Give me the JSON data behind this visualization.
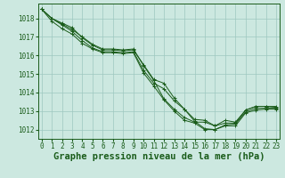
{
  "title": "Graphe pression niveau de la mer (hPa)",
  "xlabel_hours": [
    0,
    1,
    2,
    3,
    4,
    5,
    6,
    7,
    8,
    9,
    10,
    11,
    12,
    13,
    14,
    15,
    16,
    17,
    18,
    19,
    20,
    21,
    22,
    23
  ],
  "ylim": [
    1011.5,
    1018.8
  ],
  "xlim": [
    -0.3,
    23.3
  ],
  "yticks": [
    1012,
    1013,
    1014,
    1015,
    1016,
    1017,
    1018
  ],
  "background_color": "#cce8e0",
  "grid_color": "#9dc8c0",
  "line_color": "#1a5c1a",
  "lines": [
    [
      1018.5,
      1018.0,
      1017.75,
      1017.5,
      1016.95,
      1016.55,
      1016.3,
      1016.3,
      1016.25,
      1016.3,
      1015.5,
      1014.7,
      1014.5,
      1013.7,
      1013.1,
      1012.55,
      1012.5,
      1012.2,
      1012.5,
      1012.4,
      1013.05,
      1013.25,
      1013.25,
      1013.2
    ],
    [
      1018.5,
      1018.0,
      1017.65,
      1017.3,
      1016.8,
      1016.4,
      1016.2,
      1016.2,
      1016.15,
      1016.2,
      1015.2,
      1014.5,
      1014.2,
      1013.55,
      1013.1,
      1012.45,
      1012.05,
      1012.0,
      1012.25,
      1012.3,
      1012.95,
      1013.15,
      1013.15,
      1013.15
    ],
    [
      1018.5,
      1017.85,
      1017.45,
      1017.15,
      1016.65,
      1016.35,
      1016.15,
      1016.15,
      1016.1,
      1016.15,
      1015.05,
      1014.35,
      1013.6,
      1013.0,
      1012.5,
      1012.35,
      1012.0,
      1012.0,
      1012.2,
      1012.2,
      1012.9,
      1013.05,
      1013.1,
      1013.1
    ],
    [
      1018.5,
      1018.0,
      1017.7,
      1017.4,
      1017.0,
      1016.6,
      1016.35,
      1016.35,
      1016.3,
      1016.35,
      1015.45,
      1014.65,
      1013.65,
      1013.1,
      1012.65,
      1012.4,
      1012.4,
      1012.2,
      1012.35,
      1012.35,
      1013.05,
      1013.25,
      1013.25,
      1013.25
    ]
  ],
  "title_color": "#1a5c1a",
  "title_fontsize": 7.5,
  "tick_fontsize": 5.5,
  "marker": "+"
}
